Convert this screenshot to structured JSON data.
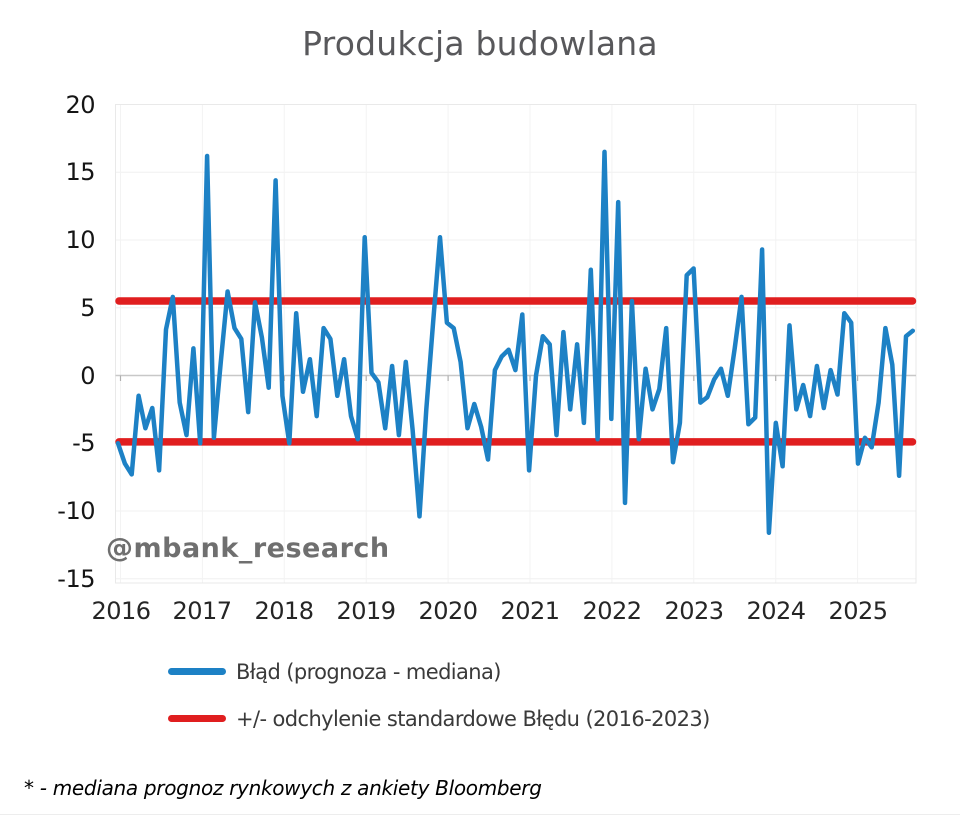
{
  "title": "Produkcja budowlana",
  "watermark": "@mbank_research",
  "footnote": "* - mediana prognoz rynkowych z ankiety Bloomberg",
  "legend": [
    {
      "label": "Błąd (prognoza - mediana)",
      "color": "#1d81c5"
    },
    {
      "label": "+/- odchylenie standardowe Błędu (2016-2023)",
      "color": "#e01e1f"
    }
  ],
  "colors": {
    "error_line": "#1d81c5",
    "std_line": "#e01e1f",
    "gridline": "#f0f0f0",
    "v_gridline": "#f3f3f3",
    "zero_axis": "#c8c8c8",
    "plot_border": "#e9e9e9",
    "tick_mark": "#b0b0b0",
    "title_text": "#58585b"
  },
  "chart_data": {
    "type": "line",
    "title": "Produkcja budowlana",
    "frequency": "monthly",
    "x_start": "2016-01",
    "x_end": "2025-09",
    "x_tick_labels": [
      "2016",
      "2017",
      "2018",
      "2019",
      "2020",
      "2021",
      "2022",
      "2023",
      "2024",
      "2025"
    ],
    "y_ticks": [
      20,
      15,
      10,
      5,
      0,
      -5,
      -10,
      -15
    ],
    "ylim": [
      -15.4,
      20.6
    ],
    "gridlines": true,
    "legend_position": "bottom",
    "series": [
      {
        "name": "Błąd (prognoza - mediana)",
        "type": "line",
        "color": "#1d81c5",
        "values": [
          -5.0,
          -6.5,
          -7.3,
          -1.5,
          -3.9,
          -2.4,
          -7.0,
          3.4,
          5.8,
          -2.0,
          -4.4,
          2.0,
          -5.0,
          16.2,
          -4.6,
          1.0,
          6.2,
          3.5,
          2.7,
          -2.7,
          5.4,
          2.8,
          -0.9,
          14.4,
          -1.5,
          -5.0,
          4.6,
          -1.2,
          1.2,
          -3.0,
          3.5,
          2.7,
          -1.5,
          1.2,
          -3.0,
          -4.7,
          10.2,
          0.2,
          -0.5,
          -3.9,
          0.7,
          -4.4,
          1.0,
          -4.0,
          -10.4,
          -2.5,
          4.0,
          10.2,
          3.9,
          3.5,
          1.0,
          -3.9,
          -2.1,
          -3.8,
          -6.2,
          0.4,
          1.4,
          1.9,
          0.4,
          4.5,
          -7.0,
          0.0,
          2.9,
          2.3,
          -4.4,
          3.2,
          -2.5,
          2.3,
          -3.5,
          7.8,
          -4.7,
          16.5,
          -3.2,
          12.8,
          -9.4,
          5.5,
          -4.7,
          0.5,
          -2.5,
          -1.0,
          3.5,
          -6.4,
          -3.5,
          7.4,
          7.9,
          -2.0,
          -1.6,
          -0.3,
          0.5,
          -1.5,
          2.0,
          5.8,
          -3.6,
          -3.1,
          9.3,
          -11.6,
          -3.5,
          -6.7,
          3.7,
          -2.5,
          -0.7,
          -3.0,
          0.7,
          -2.4,
          0.4,
          -1.4,
          4.6,
          3.9,
          -6.5,
          -4.6,
          -5.3,
          -2.0,
          3.5,
          0.8,
          -7.4,
          2.9,
          3.3
        ]
      },
      {
        "name": "+/- odchylenie standardowe Błędu (2016-2023)",
        "type": "hline",
        "color": "#e01e1f",
        "upper": 5.5,
        "lower": -4.9
      }
    ]
  }
}
